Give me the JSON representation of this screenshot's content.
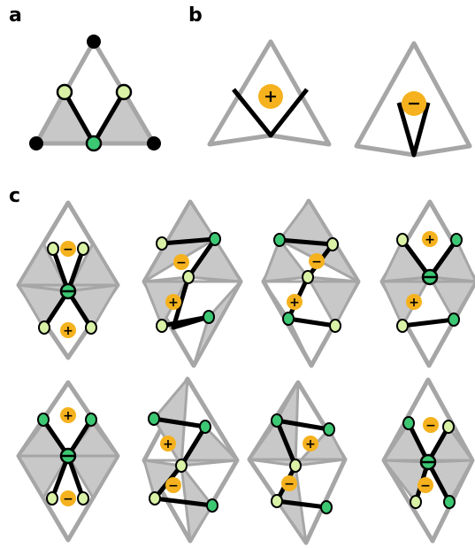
{
  "figure": {
    "panels": [
      {
        "id": "a",
        "label": "a"
      },
      {
        "id": "b",
        "label": "b"
      },
      {
        "id": "c",
        "label": "c"
      }
    ],
    "panel_b": {
      "left_tile_sign": "+",
      "right_tile_sign": "−"
    },
    "panel_c_rows": [
      {
        "row": 1,
        "tiles": [
          {
            "col": 1,
            "signs": [
              "−",
              "+"
            ]
          },
          {
            "col": 2,
            "signs": [
              "−",
              "+"
            ]
          },
          {
            "col": 3,
            "signs": [
              "−",
              "+"
            ]
          },
          {
            "col": 4,
            "signs": [
              "+",
              "+"
            ]
          }
        ]
      },
      {
        "row": 2,
        "tiles": [
          {
            "col": 1,
            "signs": [
              "+",
              "−"
            ]
          },
          {
            "col": 2,
            "signs": [
              "+",
              "−"
            ]
          },
          {
            "col": 3,
            "signs": [
              "+",
              "−"
            ]
          },
          {
            "col": 4,
            "signs": [
              "−",
              "−"
            ]
          }
        ]
      }
    ],
    "colors": {
      "edge": "#a6a6a6",
      "shade": "#c8c8c8",
      "line": "#000000",
      "vertex_black": "#000000",
      "vertex_light": "#d9f2a6",
      "vertex_green": "#3cc873",
      "charge": "#f5b21e"
    }
  }
}
